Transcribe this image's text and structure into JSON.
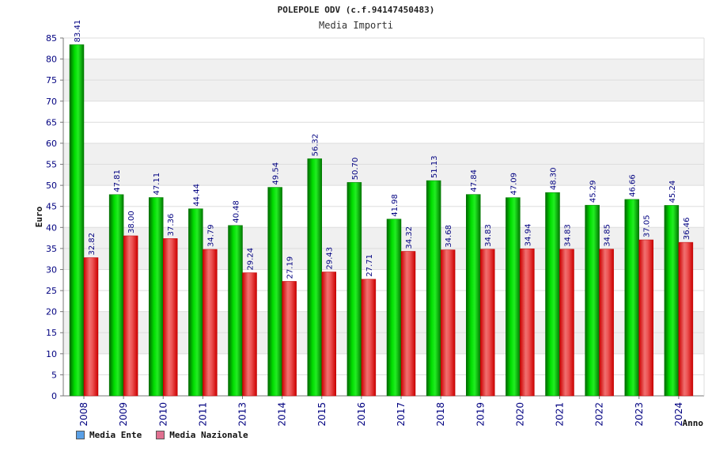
{
  "title": "POLEPOLE ODV (c.f.94147450483)",
  "subtitle": "Media Importi",
  "legend": {
    "ente": {
      "label": "Media Ente",
      "color": "#5aa0e6"
    },
    "nazionale": {
      "label": "Media Nazionale",
      "color": "#e07090"
    }
  },
  "colors": {
    "ente": "#00cc00",
    "nazionale": "#ee2222",
    "label": "#000080",
    "grid_band": "#f0f0f0"
  },
  "chart_data": {
    "type": "bar",
    "ylabel": "Euro",
    "xlabel": "Anno",
    "ylim": [
      0,
      85
    ],
    "yticks": [
      0,
      5,
      10,
      15,
      20,
      25,
      30,
      35,
      40,
      45,
      50,
      55,
      60,
      65,
      70,
      75,
      80,
      85
    ],
    "categories": [
      "2008",
      "2009",
      "2010",
      "2011",
      "2013",
      "2014",
      "2015",
      "2016",
      "2017",
      "2018",
      "2019",
      "2020",
      "2021",
      "2022",
      "2023",
      "2024"
    ],
    "series": [
      {
        "name": "Media Ente",
        "values": [
          83.41,
          47.81,
          47.11,
          44.44,
          40.48,
          49.54,
          56.32,
          50.7,
          41.98,
          51.13,
          47.84,
          47.09,
          48.3,
          45.29,
          46.66,
          45.24
        ]
      },
      {
        "name": "Media Nazionale",
        "values": [
          32.82,
          38.0,
          37.36,
          34.79,
          29.24,
          27.19,
          29.43,
          27.71,
          34.32,
          34.68,
          34.83,
          34.94,
          34.83,
          34.85,
          37.05,
          36.46
        ]
      }
    ]
  }
}
